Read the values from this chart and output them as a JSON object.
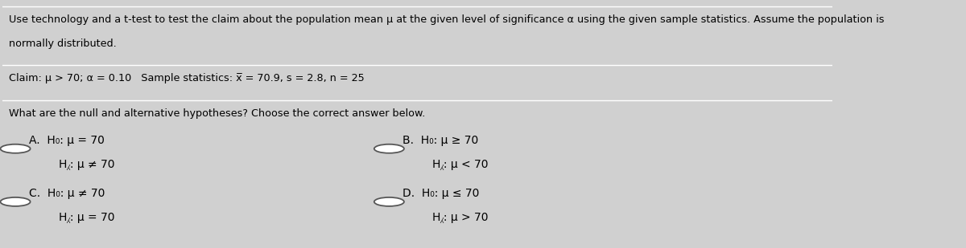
{
  "bg_color": "#d0d0d0",
  "text_color": "#000000",
  "title_line1": "Use technology and a t-test to test the claim about the population mean μ at the given level of significance α using the given sample statistics. Assume the population is",
  "title_line2": "normally distributed.",
  "claim_line": "Claim: μ > 70; α = 0.10   Sample statistics: x̅ = 70.9, s = 2.8, n = 25",
  "question_line": "What are the null and alternative hypotheses? Choose the correct answer below.",
  "optA_line1": "H₀: μ = 70",
  "optA_line2": "H⁁: μ ≠ 70",
  "optB_line1": "H₀: μ ≥ 70",
  "optB_line2": "H⁁: μ < 70",
  "optC_line1": "H₀: μ ≠ 70",
  "optC_line2": "H⁁: μ = 70",
  "optD_line1": "H₀: μ ≤ 70",
  "optD_line2": "H⁁: μ > 70",
  "font_size_text": 9.2,
  "font_size_options": 10.0,
  "line_color": "#ffffff"
}
